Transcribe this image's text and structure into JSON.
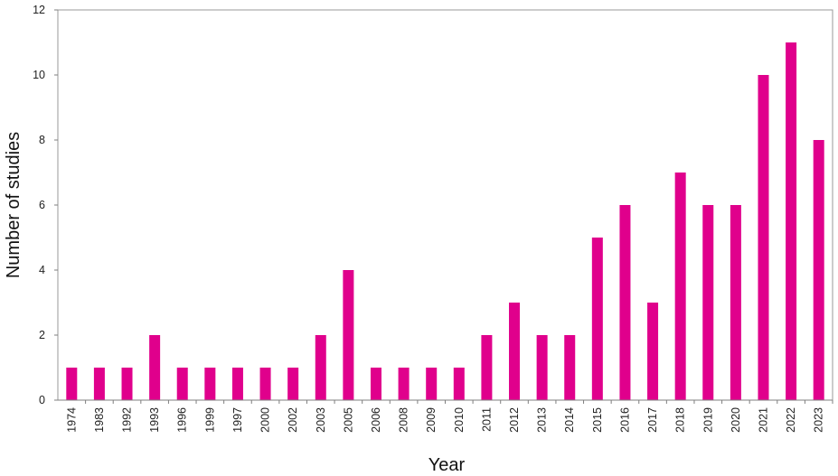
{
  "chart_data": {
    "type": "bar",
    "title": "",
    "xlabel": "Year",
    "ylabel": "Number of studies",
    "categories": [
      "1974",
      "1983",
      "1992",
      "1993",
      "1996",
      "1999",
      "1997",
      "2000",
      "2002",
      "2003",
      "2005",
      "2006",
      "2008",
      "2009",
      "2010",
      "2011",
      "2012",
      "2013",
      "2014",
      "2015",
      "2016",
      "2017",
      "2018",
      "2019",
      "2020",
      "2021",
      "2022",
      "2023"
    ],
    "values": [
      1,
      1,
      1,
      2,
      1,
      1,
      1,
      1,
      1,
      2,
      4,
      1,
      1,
      1,
      1,
      2,
      3,
      2,
      2,
      5,
      6,
      3,
      7,
      6,
      6,
      10,
      11,
      8
    ],
    "ylim": [
      0,
      12
    ],
    "yticks": [
      "0",
      "2",
      "4",
      "6",
      "8",
      "10",
      "12"
    ],
    "grid": false,
    "bar_color": "#E0008C"
  }
}
